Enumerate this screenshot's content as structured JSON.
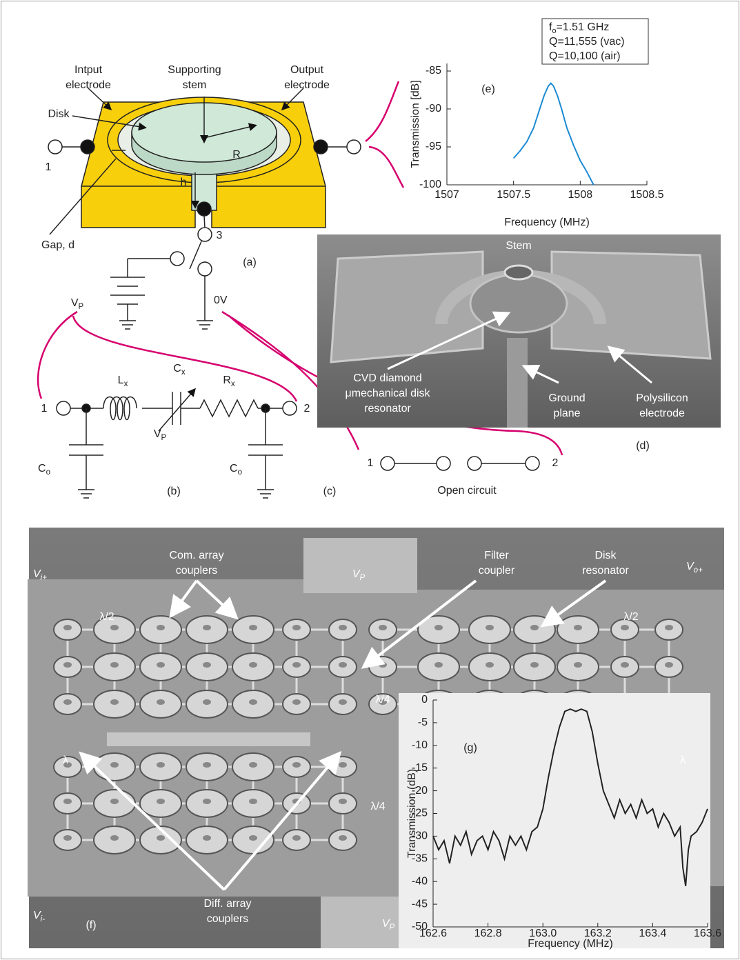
{
  "figure": {
    "a": {
      "input_electrode": [
        "Intput",
        "electrode"
      ],
      "supporting_stem": [
        "Supporting",
        "stem"
      ],
      "output_electrode": [
        "Output",
        "electrode"
      ],
      "disk": "Disk",
      "radius": "R",
      "height": "h",
      "port_1": "1",
      "port_3": "3",
      "gap": "Gap, d",
      "label": "(a)",
      "vp": {
        "base": "V",
        "sub": "P"
      },
      "zero_v": "0V"
    },
    "b": {
      "port_1": "1",
      "port_2": "2",
      "lx": {
        "base": "L",
        "sub": "x"
      },
      "cx": {
        "base": "C",
        "sub": "x"
      },
      "rx": {
        "base": "R",
        "sub": "x"
      },
      "vp": {
        "base": "V",
        "sub": "P"
      },
      "co_left": {
        "base": "C",
        "sub": "o"
      },
      "co_right": {
        "base": "C",
        "sub": "o"
      },
      "label": "(b)"
    },
    "c": {
      "port_1": "1",
      "port_2": "2",
      "open_circuit": "Open circuit",
      "label": "(c)"
    },
    "d": {
      "stem": "Stem",
      "disk_resonator": [
        "CVD diamond",
        "μmechanical disk",
        "resonator"
      ],
      "ground_plane": [
        "Ground",
        "plane"
      ],
      "electrode": [
        "Polysilicon",
        "electrode"
      ],
      "label": "(d)"
    },
    "e": {
      "info": [
        {
          "base": "f",
          "sub": "o",
          "rest": "=1.51 GHz"
        },
        "Q=11,555 (vac)",
        "Q=10,100 (air)"
      ],
      "label": "(e)"
    },
    "f": {
      "vi_plus": {
        "base": "V",
        "sub": "i+"
      },
      "vp_top": {
        "base": "V",
        "sub": "P"
      },
      "vo_plus": {
        "base": "V",
        "sub": "o+"
      },
      "com_array": [
        "Com. array",
        "couplers"
      ],
      "filter_coupler": [
        "Filter",
        "coupler"
      ],
      "disk_resonator": [
        "Disk",
        "resonator"
      ],
      "lambda_half_left": "λ/2",
      "lambda_half_right": "λ/2",
      "lambda_quarter_mid": "λ/4",
      "lambda_left": "λ",
      "lambda_right": "λ",
      "lambda_quarter_low": "λ/4",
      "diff_array": [
        "Diff. array",
        "couplers"
      ],
      "vi_minus": {
        "base": "V",
        "sub": "i-"
      },
      "vp_bottom": {
        "base": "V",
        "sub": "P"
      },
      "label": "(f)"
    },
    "g": {
      "label": "(g)"
    }
  },
  "chart_data": [
    {
      "type": "line",
      "x_label": "Frequency (MHz)",
      "y_label": "Transmission [dB]",
      "color": "#1b8ad3",
      "x": [
        1507.5,
        1507.55,
        1507.6,
        1507.65,
        1507.7,
        1507.73,
        1507.76,
        1507.78,
        1507.8,
        1507.83,
        1507.86,
        1507.9,
        1507.95,
        1508.0,
        1508.05,
        1508.1
      ],
      "values": [
        -96.5,
        -95.5,
        -94.3,
        -92.5,
        -89.8,
        -88.2,
        -87,
        -86.6,
        -87,
        -88.3,
        -90,
        -92.5,
        -94.8,
        -96.8,
        -98.3,
        -100
      ],
      "xlim": [
        1507,
        1508.5
      ],
      "ylim": [
        -100,
        -84
      ],
      "xticks": [
        1507,
        1507.5,
        1508,
        1508.5
      ],
      "yticks": [
        -100,
        -95,
        -90,
        -85
      ]
    },
    {
      "type": "line",
      "x_label": "Frequency (MHz)",
      "y_label": "Transmission (dB)",
      "color": "#222222",
      "x": [
        162.6,
        162.62,
        162.64,
        162.66,
        162.68,
        162.7,
        162.72,
        162.74,
        162.76,
        162.78,
        162.8,
        162.82,
        162.84,
        162.86,
        162.88,
        162.9,
        162.92,
        162.94,
        162.96,
        162.98,
        163.0,
        163.02,
        163.04,
        163.06,
        163.08,
        163.1,
        163.12,
        163.14,
        163.16,
        163.18,
        163.2,
        163.22,
        163.24,
        163.26,
        163.28,
        163.3,
        163.32,
        163.34,
        163.36,
        163.38,
        163.4,
        163.42,
        163.44,
        163.46,
        163.48,
        163.5,
        163.51,
        163.52,
        163.53,
        163.54,
        163.56,
        163.58,
        163.6
      ],
      "values": [
        -30,
        -33,
        -31,
        -36,
        -30,
        -32,
        -29,
        -34,
        -31,
        -30,
        -33,
        -29,
        -31,
        -35,
        -30,
        -32,
        -30,
        -33,
        -29,
        -28,
        -24,
        -17,
        -11,
        -6,
        -2.5,
        -2,
        -2.5,
        -2,
        -2.5,
        -7,
        -14,
        -20,
        -23,
        -26,
        -22,
        -25,
        -23,
        -26,
        -22,
        -25,
        -24,
        -28,
        -25,
        -27,
        -30,
        -28,
        -37,
        -41,
        -33,
        -30,
        -29,
        -27,
        -24
      ],
      "xlim": [
        162.6,
        163.6
      ],
      "ylim": [
        -50,
        0
      ],
      "xticks": [
        162.6,
        162.8,
        {
          "value": 163,
          "label": "163.0"
        },
        163.2,
        163.4,
        163.6
      ],
      "yticks": [
        -50,
        -45,
        -40,
        -35,
        -30,
        -25,
        -20,
        -15,
        -10,
        -5,
        0
      ]
    }
  ]
}
